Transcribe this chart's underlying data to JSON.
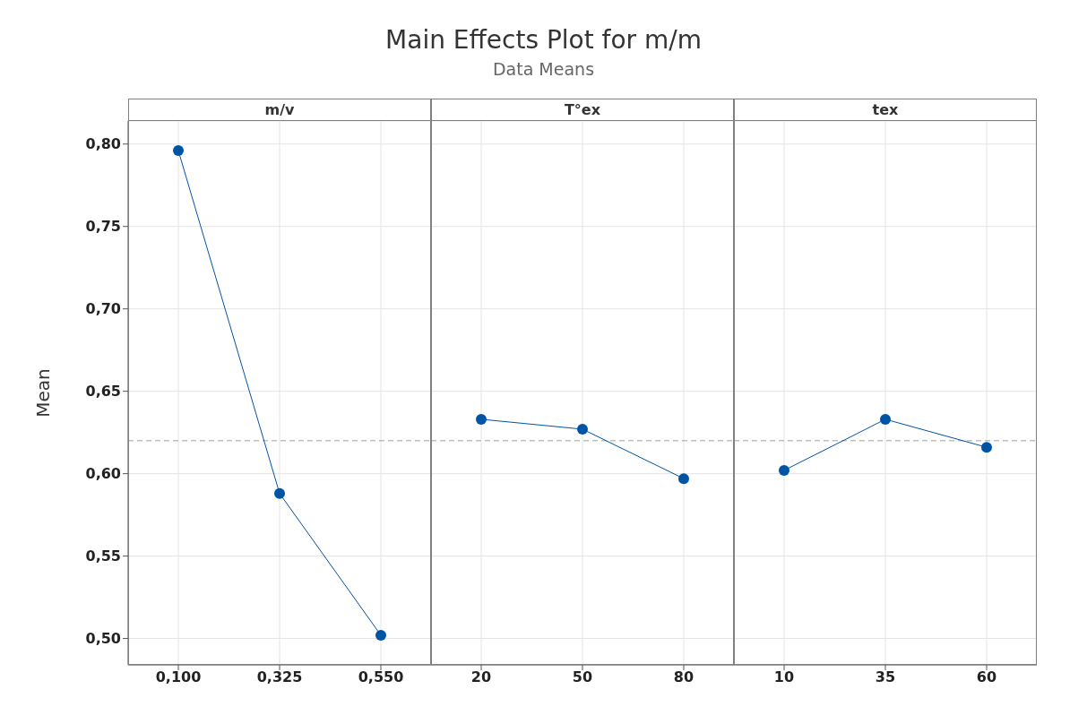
{
  "chart_data": [
    {
      "type": "line",
      "title": "m/v",
      "annotations": [
        "Main Effects Plot for m/m",
        "Data Means"
      ],
      "ylabel": "Mean",
      "categories": [
        "0,100",
        "0,325",
        "0,550"
      ],
      "series": [
        {
          "color": "#0054a6",
          "values": [
            0.796,
            0.588,
            0.502
          ]
        }
      ],
      "ylim": [
        0.484,
        0.814
      ],
      "yticks": [
        {
          "value": 0.5,
          "label": "0,50"
        },
        {
          "value": 0.55,
          "label": "0,55"
        },
        {
          "value": 0.6,
          "label": "0,60"
        },
        {
          "value": 0.65,
          "label": "0,65"
        },
        {
          "value": 0.7,
          "label": "0,70"
        },
        {
          "value": 0.75,
          "label": "0,75"
        },
        {
          "value": 0.8,
          "label": "0,80"
        }
      ],
      "grid": true,
      "marker": "circle",
      "line_style": "solid",
      "ref_lines": [
        {
          "axis": "y",
          "value": 0.62,
          "color": "#a0a0a0",
          "line_style": "dashed"
        }
      ]
    },
    {
      "type": "line",
      "title": "T°ex",
      "categories": [
        "20",
        "50",
        "80"
      ],
      "series": [
        {
          "color": "#0054a6",
          "values": [
            0.633,
            0.627,
            0.597
          ]
        }
      ],
      "ylim": [
        0.484,
        0.814
      ],
      "yticks": [
        {
          "value": 0.5,
          "label": null
        },
        {
          "value": 0.55,
          "label": null
        },
        {
          "value": 0.6,
          "label": null
        },
        {
          "value": 0.65,
          "label": null
        },
        {
          "value": 0.7,
          "label": null
        },
        {
          "value": 0.75,
          "label": null
        },
        {
          "value": 0.8,
          "label": null
        }
      ],
      "grid": true,
      "marker": "circle",
      "line_style": "solid",
      "tick_labels": "x",
      "ref_lines": [
        {
          "axis": "y",
          "value": 0.62,
          "color": "#a0a0a0",
          "line_style": "dashed"
        }
      ]
    },
    {
      "type": "line",
      "title": "tex",
      "categories": [
        "10",
        "35",
        "60"
      ],
      "series": [
        {
          "color": "#0054a6",
          "values": [
            0.602,
            0.633,
            0.616
          ]
        }
      ],
      "ylim": [
        0.484,
        0.814
      ],
      "yticks": [
        {
          "value": 0.5,
          "label": null
        },
        {
          "value": 0.55,
          "label": null
        },
        {
          "value": 0.6,
          "label": null
        },
        {
          "value": 0.65,
          "label": null
        },
        {
          "value": 0.7,
          "label": null
        },
        {
          "value": 0.75,
          "label": null
        },
        {
          "value": 0.8,
          "label": null
        }
      ],
      "grid": true,
      "marker": "circle",
      "line_style": "solid",
      "tick_labels": "x",
      "ref_lines": [
        {
          "axis": "y",
          "value": 0.62,
          "color": "#a0a0a0",
          "line_style": "dashed"
        }
      ]
    }
  ]
}
